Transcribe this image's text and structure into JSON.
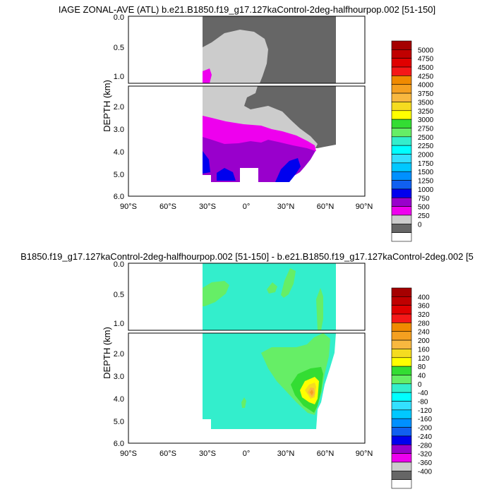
{
  "chart_data": [
    {
      "type": "heatmap",
      "title": "IAGE ZONAL-AVE (ATL) b.e21.B1850.f19_g17.127kaControl-2deg-halfhourpop.002 [51-150]",
      "xlabel": "",
      "ylabel": "DEPTH (km)",
      "x_ticks": [
        "90°S",
        "60°S",
        "30°S",
        "0°",
        "30°N",
        "60°N",
        "90°N"
      ],
      "x_tick_values": [
        -90,
        -60,
        -30,
        0,
        30,
        60,
        90
      ],
      "y_ticks_upper": [
        "0.0",
        "0.5",
        "1.0"
      ],
      "y_ticks_lower": [
        "2.0",
        "3.0",
        "4.0",
        "5.0",
        "6.0"
      ],
      "xlim": [
        -90,
        90
      ],
      "ylim": [
        0,
        6
      ],
      "colorbar_labels": [
        "5000",
        "4750",
        "4500",
        "4250",
        "4000",
        "3750",
        "3500",
        "3250",
        "3000",
        "2750",
        "2500",
        "2250",
        "2000",
        "1750",
        "1500",
        "1250",
        "1000",
        "750",
        "500",
        "250",
        "0"
      ],
      "colorbar_colors": [
        "#a50000",
        "#c00000",
        "#e00000",
        "#f51818",
        "#f08a00",
        "#f5a020",
        "#f8b840",
        "#f5dc20",
        "#ffff00",
        "#33dd33",
        "#66ee66",
        "#33eecc",
        "#00ffff",
        "#33e0ff",
        "#00c8ff",
        "#0090ff",
        "#1060f0",
        "#0000ee",
        "#9900cc",
        "#ee00ee",
        "#cccccc",
        "#666666",
        "#ffffff"
      ],
      "regions": [
        {
          "name": "0-250",
          "color": "#666666"
        },
        {
          "name": "250-500",
          "color": "#cccccc"
        },
        {
          "name": "500-750",
          "color": "#ee00ee"
        },
        {
          "name": "750-1000",
          "color": "#9900cc"
        },
        {
          "name": "1000-1250",
          "color": "#0000ee"
        }
      ]
    },
    {
      "type": "heatmap",
      "title": "B1850.f19_g17.127kaControl-2deg-halfhourpop.002 [51-150] - b.e21.B1850.f19_g17.127kaControl-2deg.002 [5",
      "xlabel": "",
      "ylabel": "DEPTH (km)",
      "x_ticks": [
        "90°S",
        "60°S",
        "30°S",
        "0°",
        "30°N",
        "60°N",
        "90°N"
      ],
      "x_tick_values": [
        -90,
        -60,
        -30,
        0,
        30,
        60,
        90
      ],
      "y_ticks_upper": [
        "0.0",
        "0.5",
        "1.0"
      ],
      "y_ticks_lower": [
        "2.0",
        "3.0",
        "4.0",
        "5.0",
        "6.0"
      ],
      "xlim": [
        -90,
        90
      ],
      "ylim": [
        0,
        6
      ],
      "colorbar_labels": [
        "400",
        "360",
        "320",
        "280",
        "240",
        "200",
        "160",
        "120",
        "80",
        "40",
        "0",
        "-40",
        "-80",
        "-120",
        "-160",
        "-200",
        "-240",
        "-280",
        "-320",
        "-360",
        "-400"
      ],
      "colorbar_colors": [
        "#a50000",
        "#c00000",
        "#e00000",
        "#f51818",
        "#f08a00",
        "#f5a020",
        "#f8b840",
        "#f5dc20",
        "#ffff00",
        "#33dd33",
        "#66ee66",
        "#33eecc",
        "#00ffff",
        "#33e0ff",
        "#00c8ff",
        "#0090ff",
        "#1060f0",
        "#0000ee",
        "#9900cc",
        "#ee00ee",
        "#cccccc",
        "#666666",
        "#ffffff"
      ],
      "regions": [
        {
          "name": "0-40",
          "color": "#33eecc"
        },
        {
          "name": "40-80",
          "color": "#66ee66"
        },
        {
          "name": "80-120",
          "color": "#33dd33"
        },
        {
          "name": "120-160",
          "color": "#ffff00"
        },
        {
          "name": "160-200",
          "color": "#f5dc20"
        },
        {
          "name": "200-240",
          "color": "#f8b840"
        },
        {
          "name": "240-280",
          "color": "#f5a020"
        }
      ]
    }
  ]
}
